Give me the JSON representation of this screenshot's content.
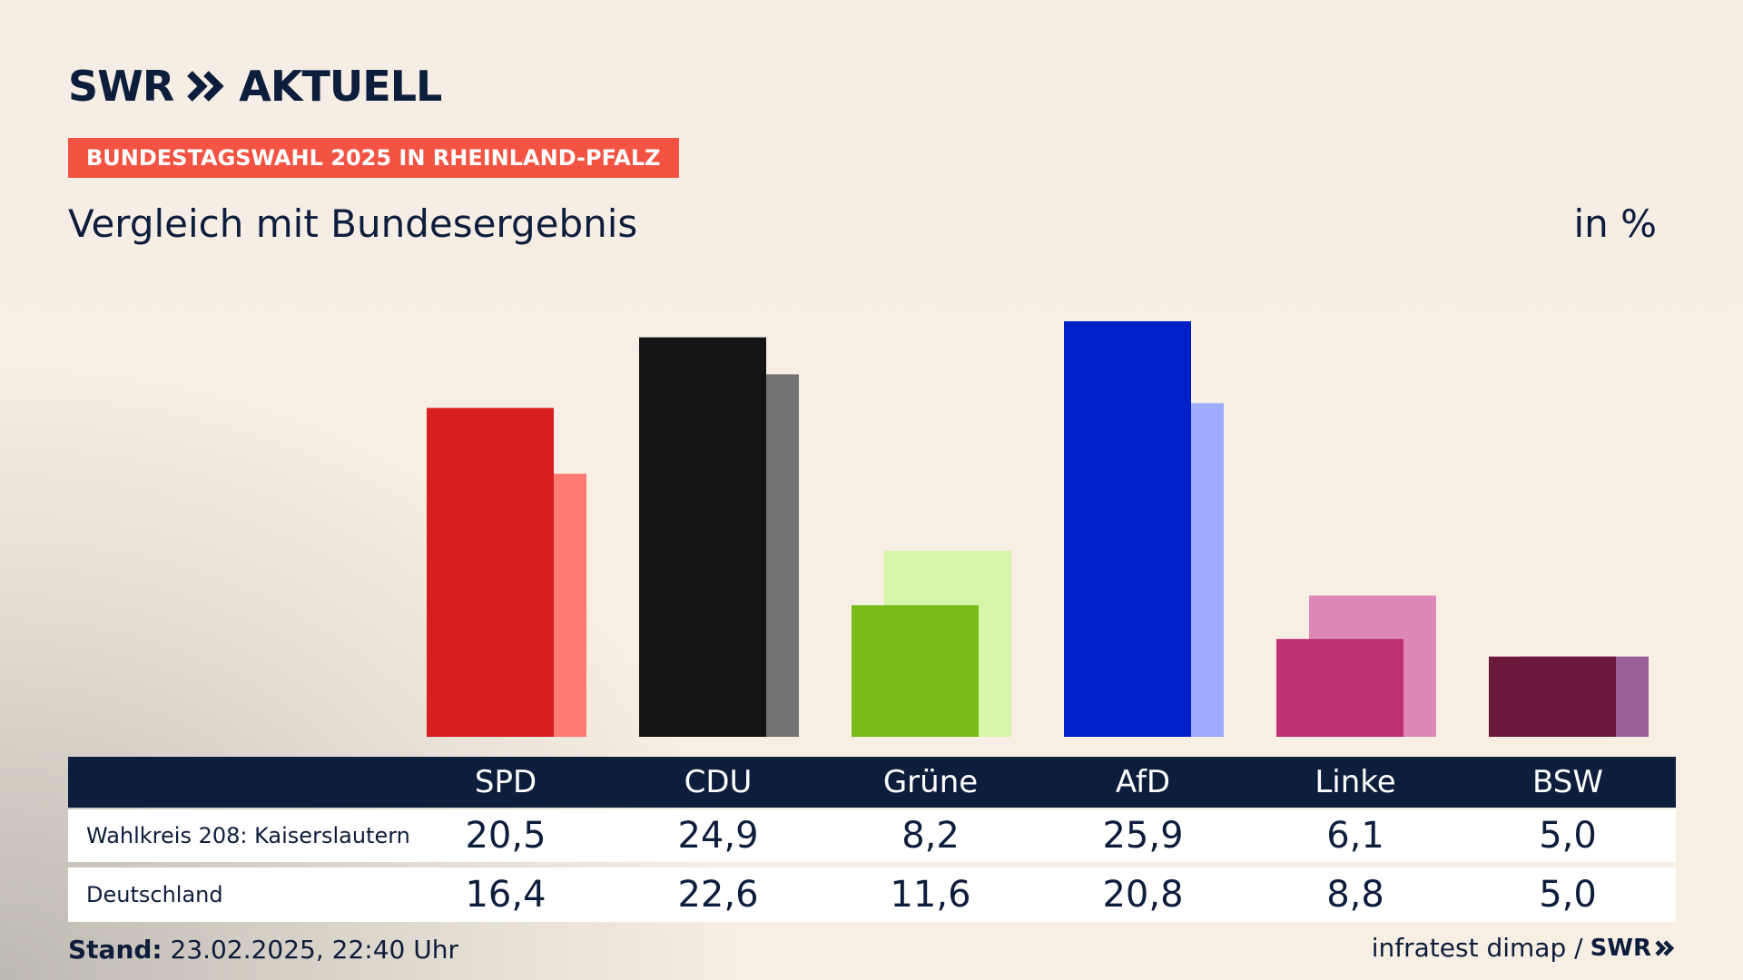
{
  "header": {
    "logo_text": "SWR",
    "logo_text2": "AKTUELL",
    "badge": "BUNDESTAGSWAHL 2025 IN RHEINLAND-PFALZ",
    "subtitle": "Vergleich mit Bundesergebnis",
    "unit": "in %"
  },
  "chart_data": {
    "type": "bar",
    "categories": [
      "SPD",
      "CDU",
      "Grüne",
      "AfD",
      "Linke",
      "BSW"
    ],
    "series": [
      {
        "name": "Wahlkreis 208: Kaiserslautern",
        "values": [
          20.5,
          24.9,
          8.2,
          25.9,
          6.1,
          5.0
        ],
        "colors": [
          "#d71f1f",
          "#141414",
          "#78bc1b",
          "#0021c8",
          "#bf3075",
          "#6b1a3d"
        ]
      },
      {
        "name": "Deutschland",
        "values": [
          16.4,
          22.6,
          11.6,
          20.8,
          8.8,
          5.0
        ],
        "colors": [
          "#ff7a70",
          "#737373",
          "#d7f5a8",
          "#9eabff",
          "#de88b8",
          "#9a5e99"
        ]
      }
    ],
    "ylim": [
      0,
      26
    ],
    "grid": false,
    "legend": "none"
  },
  "table": {
    "headers": [
      "SPD",
      "CDU",
      "Grüne",
      "AfD",
      "Linke",
      "BSW"
    ],
    "rows": [
      {
        "label": "Wahlkreis 208: Kaiserslautern",
        "values": [
          "20,5",
          "24,9",
          "8,2",
          "25,9",
          "6,1",
          "5,0"
        ]
      },
      {
        "label": "Deutschland",
        "values": [
          "16,4",
          "22,6",
          "11,6",
          "20,8",
          "8,8",
          "5,0"
        ]
      }
    ]
  },
  "footer": {
    "stand_label": "Stand:",
    "stand_value": "23.02.2025, 22:40 Uhr",
    "source": "infratest dimap /",
    "logo_text": "SWR"
  },
  "colors": {
    "navy": "#0d1d3c",
    "badge": "#f25342"
  }
}
